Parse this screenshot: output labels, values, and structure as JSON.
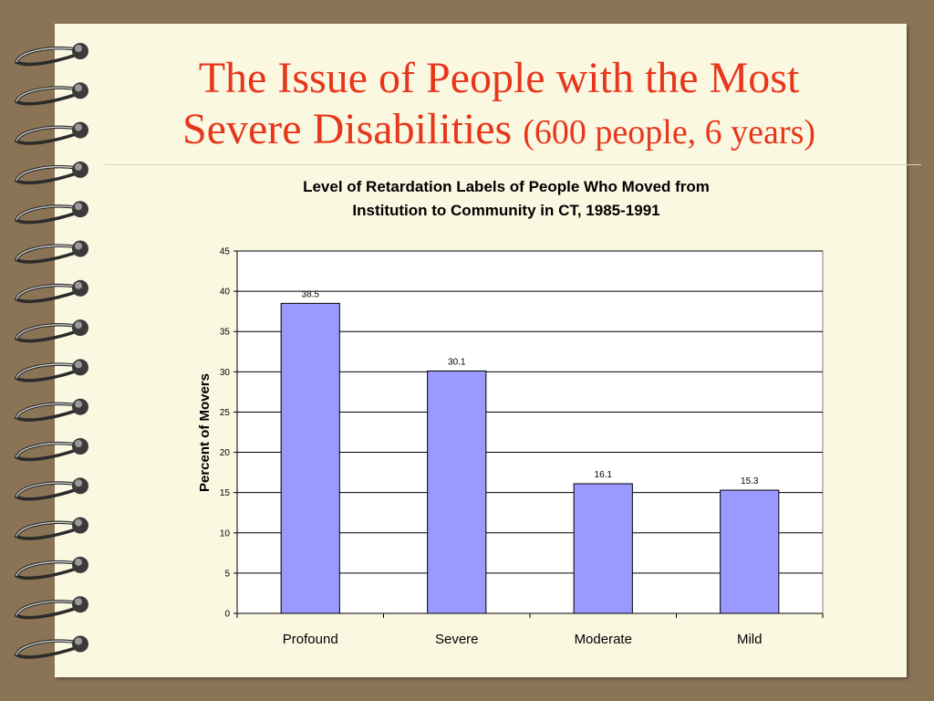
{
  "slide": {
    "title_line1": "The Issue of People with the Most",
    "title_line2": "Severe Disabilities",
    "title_sub": "(600 people, 6 years)"
  },
  "colors": {
    "background": "#8b7355",
    "paper": "#fbf8e2",
    "title": "#e8361b",
    "bar": "#9999ff"
  },
  "chart_data": {
    "type": "bar",
    "title_lines": [
      "Level of Retardation Labels of People Who Moved from",
      "Institution to Community in CT, 1985-1991"
    ],
    "categories": [
      "Profound",
      "Severe",
      "Moderate",
      "Mild"
    ],
    "values": [
      38.5,
      30.1,
      16.1,
      15.3
    ],
    "data_labels": [
      "38.5",
      "30.1",
      "16.1",
      "15.3"
    ],
    "ylabel": "Percent of Movers",
    "xlabel": "",
    "ylim": [
      0,
      45
    ],
    "yticks": [
      0,
      5,
      10,
      15,
      20,
      25,
      30,
      35,
      40,
      45
    ],
    "grid": true,
    "legend": "none"
  }
}
